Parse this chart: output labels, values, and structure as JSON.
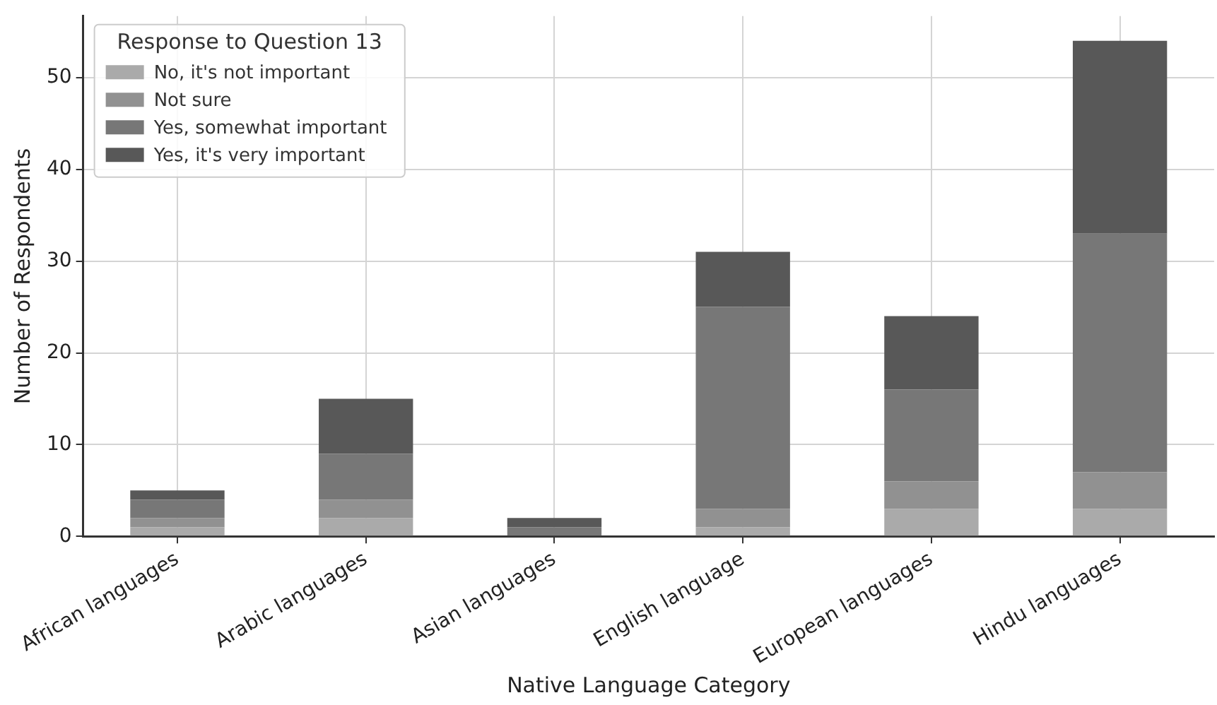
{
  "chart_data": {
    "type": "bar",
    "stacked": true,
    "xlabel": "Native Language Category",
    "ylabel": "Number of Respondents",
    "legend_title": "Response to Question 13",
    "legend": "top left",
    "grid": true,
    "categories": [
      "African languages",
      "Arabic languages",
      "Asian languages",
      "English language",
      "European languages",
      "Hindu languages"
    ],
    "ylim": [
      0,
      56.7
    ],
    "yticks": [
      0,
      10,
      20,
      30,
      40,
      50
    ],
    "series": [
      {
        "name": "No, it's not important",
        "color": "#aaaaaa",
        "values": [
          1,
          2,
          0,
          1,
          3,
          3
        ]
      },
      {
        "name": "Not sure",
        "color": "#919191",
        "values": [
          1,
          2,
          0,
          2,
          3,
          4
        ]
      },
      {
        "name": "Yes, somewhat important",
        "color": "#777777",
        "values": [
          2,
          5,
          1,
          22,
          10,
          26
        ]
      },
      {
        "name": "Yes, it's very important",
        "color": "#585858",
        "values": [
          1,
          6,
          1,
          6,
          8,
          21
        ]
      }
    ]
  }
}
